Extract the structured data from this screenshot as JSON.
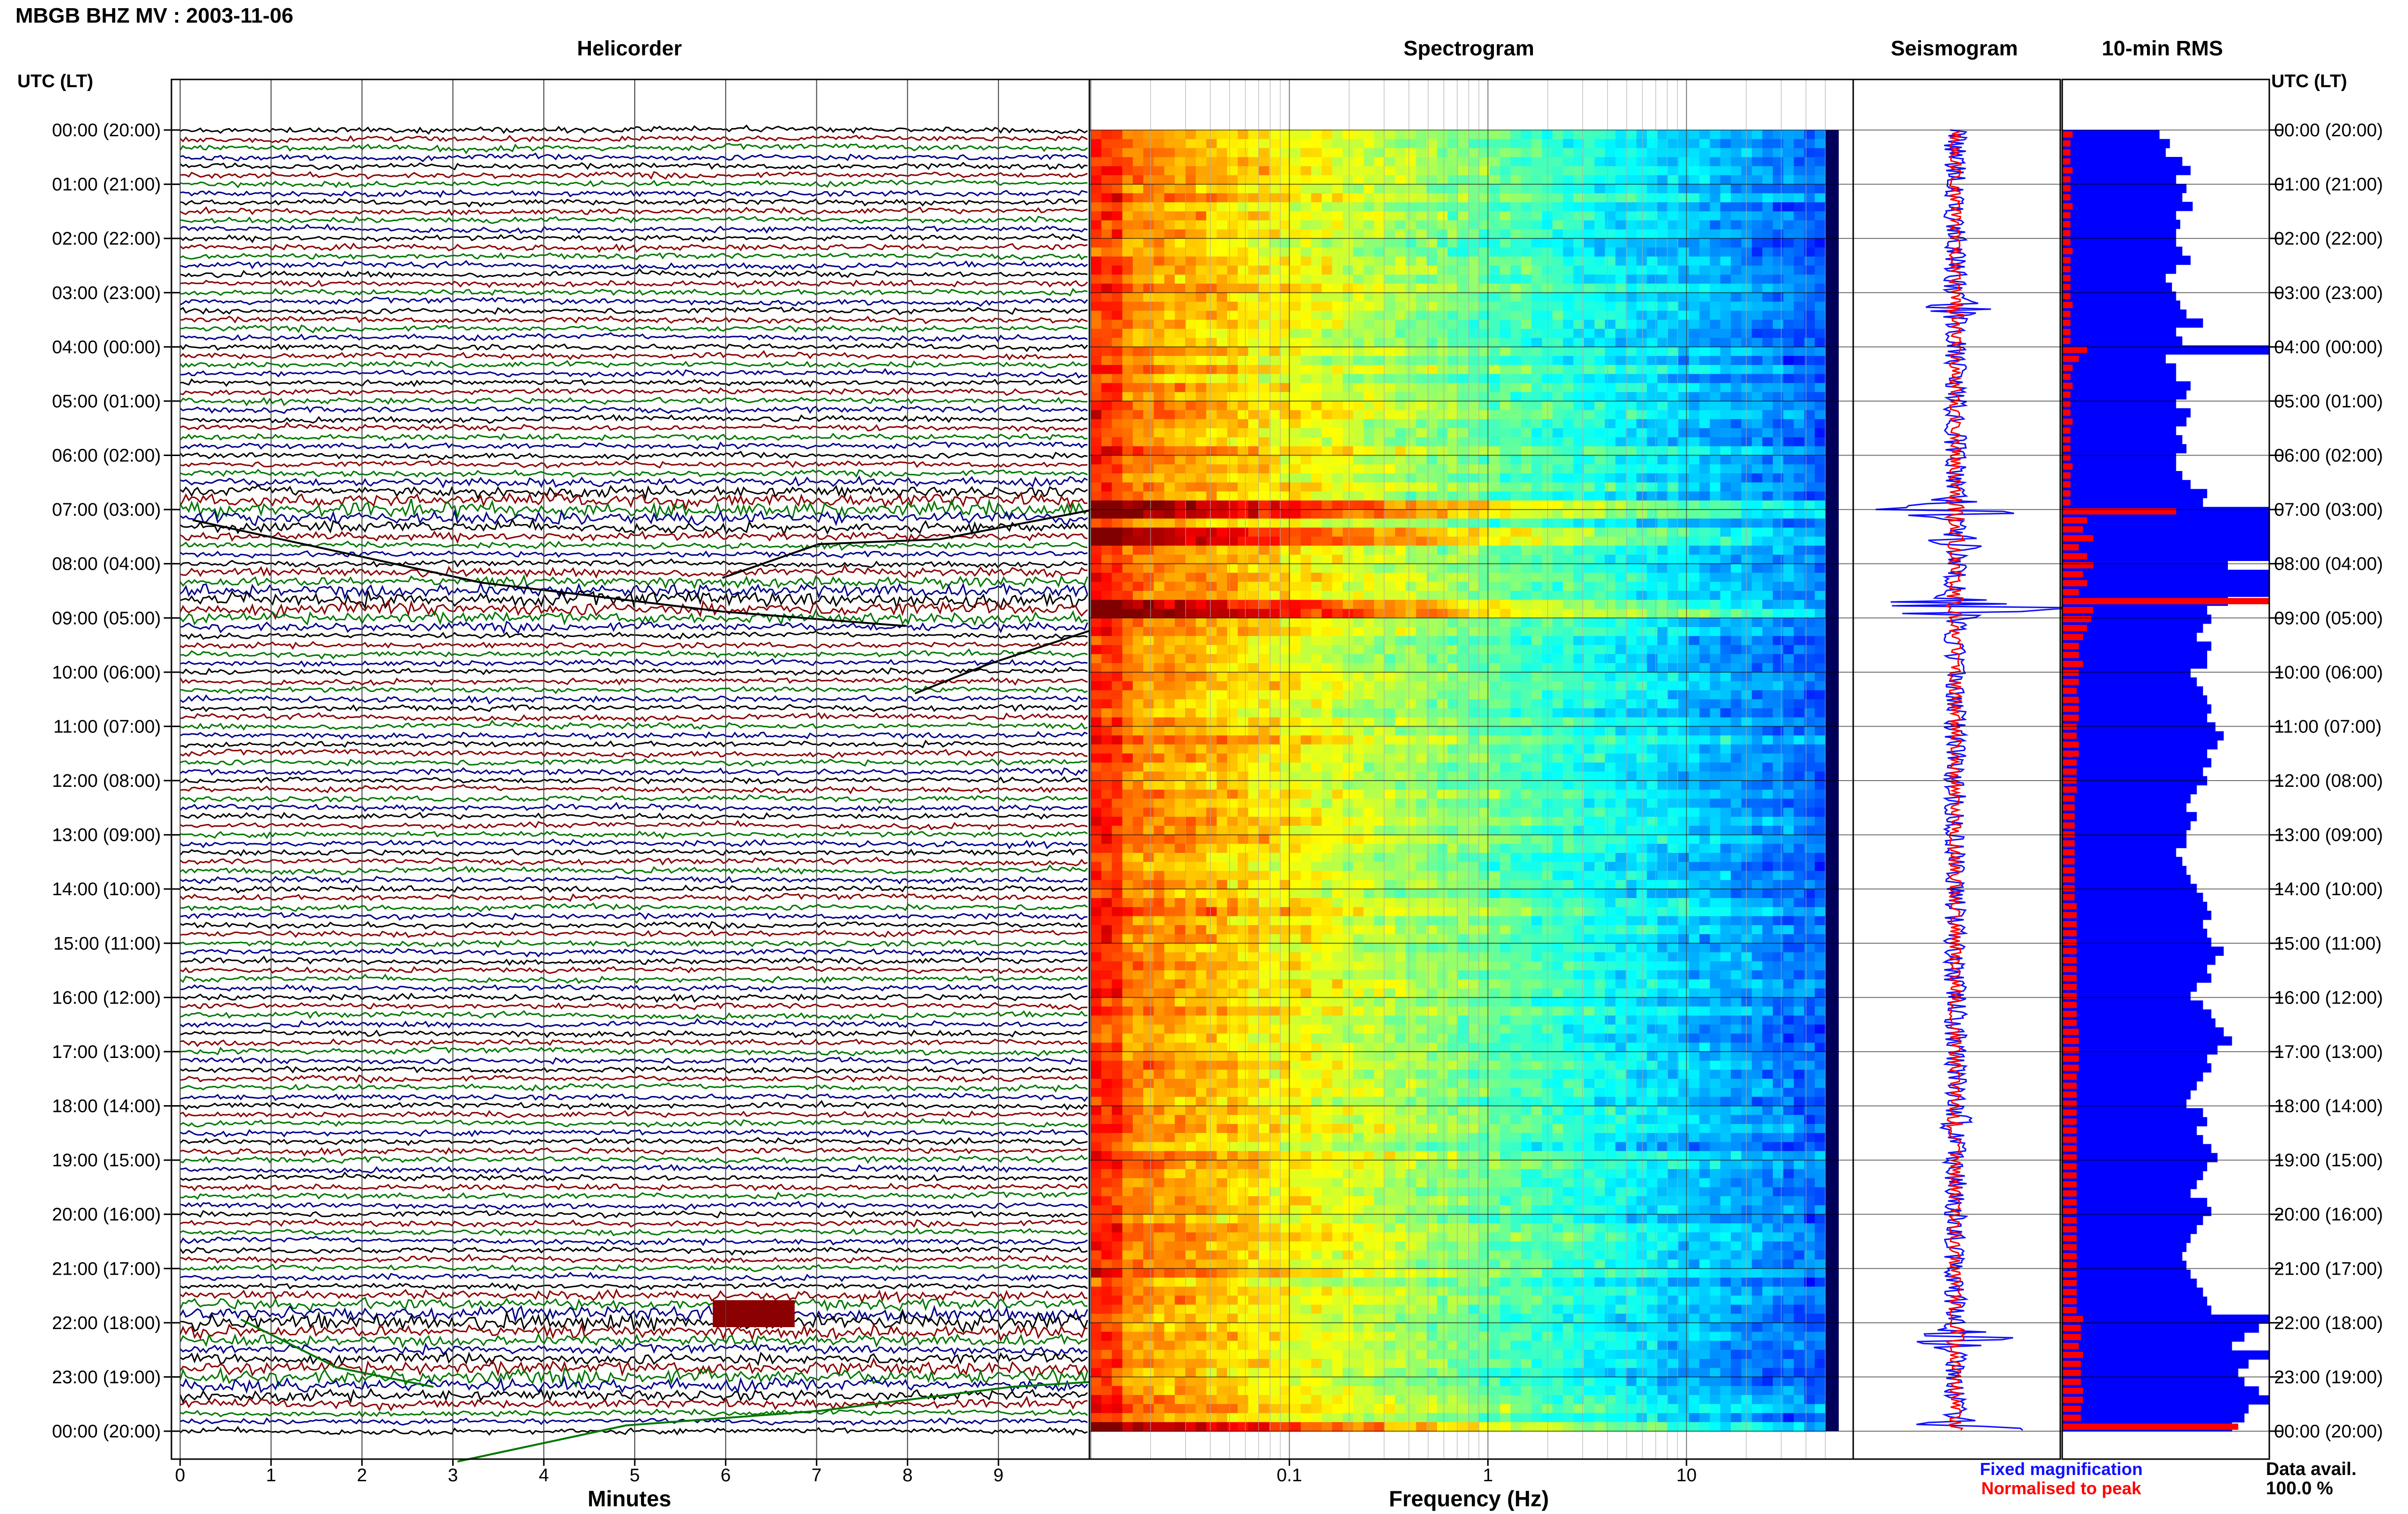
{
  "title": "MBGB BHZ MV : 2003-11-06",
  "utc_header": "UTC (LT)",
  "panels": {
    "helicorder": "Helicorder",
    "spectrogram": "Spectrogram",
    "seismogram": "Seismogram",
    "rms": "10-min RMS"
  },
  "xlabels": {
    "helicorder": "Minutes",
    "spectrogram": "Frequency (Hz)"
  },
  "legend": {
    "fixed": "Fixed magnification",
    "normalised": "Normalised to peak",
    "fixed_color": "#1010ff",
    "normalised_color": "#ff0000"
  },
  "data_avail": {
    "label": "Data avail.",
    "value": "100.0 %"
  },
  "colors": {
    "trace_cycle": [
      "#000000",
      "#8b0000",
      "#007700",
      "#00008b"
    ],
    "rms_fixed": "#0000ff",
    "rms_normalised": "#ff0000"
  },
  "chart_data": [
    {
      "type": "line",
      "name": "helicorder",
      "xlabel": "Minutes",
      "xticks": [
        0,
        1,
        2,
        3,
        4,
        5,
        6,
        7,
        8,
        9
      ],
      "xlim": [
        0,
        10
      ],
      "trace_count": 145,
      "time_labels": [
        "00:00 (20:00)",
        "01:00 (21:00)",
        "02:00 (22:00)",
        "03:00 (23:00)",
        "04:00 (00:00)",
        "05:00 (01:00)",
        "06:00 (02:00)",
        "07:00 (03:00)",
        "08:00 (04:00)",
        "09:00 (05:00)",
        "10:00 (06:00)",
        "11:00 (07:00)",
        "12:00 (08:00)",
        "13:00 (09:00)",
        "14:00 (10:00)",
        "15:00 (11:00)",
        "16:00 (12:00)",
        "17:00 (13:00)",
        "18:00 (14:00)",
        "19:00 (15:00)",
        "20:00 (16:00)",
        "21:00 (17:00)",
        "22:00 (18:00)",
        "23:00 (19:00)",
        "00:00 (20:00)"
      ],
      "event_hours": [
        7,
        8.7,
        22,
        23
      ]
    },
    {
      "type": "heatmap",
      "name": "spectrogram",
      "xlabel": "Frequency (Hz)",
      "xscale": "log",
      "xlim": [
        0.01,
        50
      ],
      "xticks": [
        0.1,
        1,
        10
      ],
      "xtick_labels": [
        "0.1",
        "1",
        "10"
      ],
      "colormap": "jet",
      "strong_rows_hours": [
        7.0,
        7.5,
        8.8,
        24.0
      ]
    },
    {
      "type": "line",
      "name": "seismogram",
      "series": [
        {
          "name": "Fixed magnification",
          "color": "#1010ff"
        },
        {
          "name": "Normalised to peak",
          "color": "#ff0000"
        }
      ]
    },
    {
      "type": "bar",
      "name": "10-min RMS",
      "orientation": "horizontal",
      "xlim": [
        0,
        1
      ],
      "series": [
        {
          "name": "Fixed magnification",
          "values": [
            0.47,
            0.52,
            0.5,
            0.58,
            0.62,
            0.55,
            0.6,
            0.58,
            0.63,
            0.55,
            0.57,
            0.55,
            0.55,
            0.58,
            0.62,
            0.55,
            0.5,
            0.53,
            0.55,
            0.57,
            0.6,
            0.68,
            0.55,
            0.58,
            1.0,
            0.5,
            0.55,
            0.55,
            0.62,
            0.6,
            0.55,
            0.62,
            0.6,
            0.55,
            0.58,
            0.6,
            0.55,
            0.55,
            0.58,
            0.62,
            0.7,
            0.68,
            1.0,
            1.0,
            1.0,
            1.0,
            1.0,
            1.0,
            0.8,
            1.0,
            1.0,
            1.0,
            0.8,
            0.7,
            0.72,
            0.68,
            0.65,
            0.72,
            0.7,
            0.7,
            0.62,
            0.65,
            0.68,
            0.7,
            0.72,
            0.7,
            0.74,
            0.78,
            0.75,
            0.7,
            0.72,
            0.68,
            0.7,
            0.65,
            0.62,
            0.6,
            0.65,
            0.62,
            0.6,
            0.6,
            0.55,
            0.58,
            0.6,
            0.62,
            0.65,
            0.68,
            0.7,
            0.72,
            0.68,
            0.7,
            0.72,
            0.78,
            0.74,
            0.7,
            0.72,
            0.65,
            0.62,
            0.68,
            0.72,
            0.74,
            0.78,
            0.82,
            0.75,
            0.7,
            0.72,
            0.68,
            0.65,
            0.62,
            0.6,
            0.68,
            0.7,
            0.65,
            0.68,
            0.72,
            0.75,
            0.7,
            0.68,
            0.65,
            0.62,
            0.7,
            0.72,
            0.68,
            0.65,
            0.62,
            0.6,
            0.58,
            0.6,
            0.62,
            0.65,
            0.68,
            0.7,
            0.72,
            1.0,
            0.95,
            0.88,
            0.82,
            1.0,
            0.9,
            0.85,
            0.88,
            0.95,
            1.0,
            0.9,
            0.88,
            0.82
          ]
        },
        {
          "name": "Normalised to peak",
          "values": [
            0.05,
            0.04,
            0.04,
            0.04,
            0.05,
            0.04,
            0.04,
            0.04,
            0.05,
            0.04,
            0.04,
            0.04,
            0.04,
            0.05,
            0.04,
            0.04,
            0.04,
            0.04,
            0.04,
            0.05,
            0.04,
            0.04,
            0.04,
            0.04,
            0.12,
            0.08,
            0.05,
            0.04,
            0.05,
            0.04,
            0.04,
            0.04,
            0.05,
            0.04,
            0.04,
            0.04,
            0.04,
            0.05,
            0.04,
            0.04,
            0.04,
            0.04,
            0.55,
            0.12,
            0.1,
            0.15,
            0.08,
            0.12,
            0.15,
            0.1,
            0.12,
            0.08,
            1.0,
            0.15,
            0.14,
            0.12,
            0.1,
            0.08,
            0.08,
            0.1,
            0.08,
            0.08,
            0.07,
            0.08,
            0.08,
            0.08,
            0.07,
            0.07,
            0.08,
            0.08,
            0.07,
            0.07,
            0.07,
            0.07,
            0.06,
            0.06,
            0.06,
            0.06,
            0.06,
            0.06,
            0.06,
            0.06,
            0.06,
            0.06,
            0.06,
            0.06,
            0.07,
            0.07,
            0.07,
            0.07,
            0.07,
            0.07,
            0.07,
            0.07,
            0.07,
            0.07,
            0.07,
            0.07,
            0.07,
            0.07,
            0.08,
            0.08,
            0.08,
            0.08,
            0.08,
            0.07,
            0.07,
            0.07,
            0.07,
            0.07,
            0.07,
            0.07,
            0.07,
            0.07,
            0.07,
            0.07,
            0.07,
            0.07,
            0.07,
            0.07,
            0.07,
            0.07,
            0.07,
            0.07,
            0.07,
            0.07,
            0.07,
            0.07,
            0.07,
            0.07,
            0.07,
            0.07,
            0.1,
            0.09,
            0.09,
            0.08,
            0.1,
            0.09,
            0.09,
            0.09,
            0.1,
            0.1,
            0.09,
            0.09,
            0.85
          ]
        }
      ]
    }
  ]
}
